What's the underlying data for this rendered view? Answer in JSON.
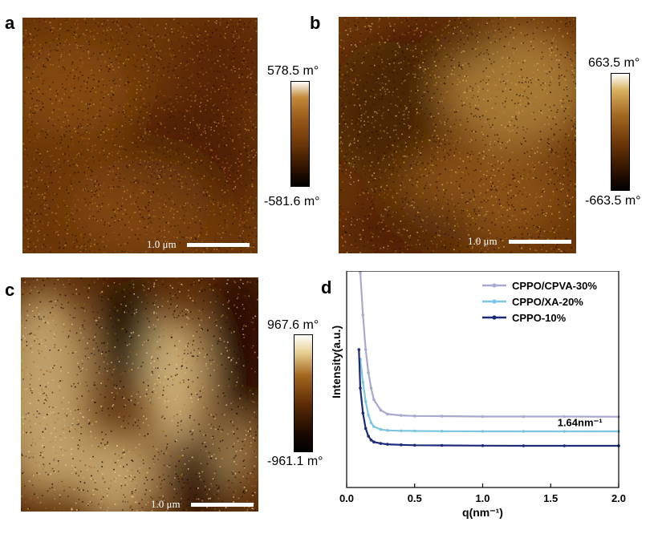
{
  "panels": {
    "a": {
      "letter": "a",
      "scalebar": "1.0 μm",
      "colorbar_max": "578.5 m°",
      "colorbar_min": "-581.6 m°",
      "colors": [
        "#2a1000",
        "#6b3608",
        "#9a5a1a",
        "#c28a3a"
      ]
    },
    "b": {
      "letter": "b",
      "scalebar": "1.0 μm",
      "colorbar_max": "663.5 m°",
      "colorbar_min": "-663.5 m°",
      "colors": [
        "#2a1000",
        "#6b3608",
        "#a46a22",
        "#d6ad5a"
      ]
    },
    "c": {
      "letter": "c",
      "scalebar": "1.0 μm",
      "colorbar_max": "967.6 m°",
      "colorbar_min": "-961.1 m°",
      "colors": [
        "#1a0800",
        "#5a2a06",
        "#a2661e",
        "#e8cf92"
      ]
    },
    "d": {
      "letter": "d"
    }
  },
  "chart_data": {
    "type": "line",
    "xlabel": "q(nm⁻¹)",
    "ylabel": "Intensity(a.u.)",
    "xlim": [
      0,
      2.0
    ],
    "xticks": [
      "0.0",
      "0.5",
      "1.0",
      "1.5",
      "2.0"
    ],
    "annotation": "1.64nm⁻¹",
    "legend_position": "top-right",
    "series": [
      {
        "name": "CPPO/CPVA-30%",
        "color": "#a9a9cf",
        "x": [
          0.1,
          0.12,
          0.14,
          0.16,
          0.18,
          0.2,
          0.25,
          0.3,
          0.4,
          0.5,
          0.7,
          1.0,
          1.3,
          1.6,
          2.0
        ],
        "y": [
          1.0,
          0.78,
          0.6,
          0.48,
          0.4,
          0.34,
          0.285,
          0.265,
          0.258,
          0.255,
          0.254,
          0.252,
          0.252,
          0.252,
          0.251
        ]
      },
      {
        "name": "CPPO/XA-20%",
        "color": "#7cc6df",
        "x": [
          0.1,
          0.12,
          0.14,
          0.16,
          0.18,
          0.2,
          0.25,
          0.3,
          0.4,
          0.5,
          0.7,
          1.0,
          1.3,
          1.6,
          2.0
        ],
        "y": [
          0.55,
          0.43,
          0.33,
          0.26,
          0.22,
          0.2,
          0.185,
          0.18,
          0.178,
          0.177,
          0.176,
          0.175,
          0.175,
          0.175,
          0.175
        ]
      },
      {
        "name": "CPPO-10%",
        "color": "#1c2a78",
        "x": [
          0.09,
          0.1,
          0.12,
          0.14,
          0.16,
          0.18,
          0.2,
          0.25,
          0.3,
          0.4,
          0.5,
          0.7,
          1.0,
          1.3,
          1.6,
          2.0
        ],
        "y": [
          0.6,
          0.4,
          0.27,
          0.19,
          0.15,
          0.13,
          0.12,
          0.112,
          0.108,
          0.105,
          0.103,
          0.102,
          0.101,
          0.1,
          0.1,
          0.1
        ]
      }
    ]
  }
}
